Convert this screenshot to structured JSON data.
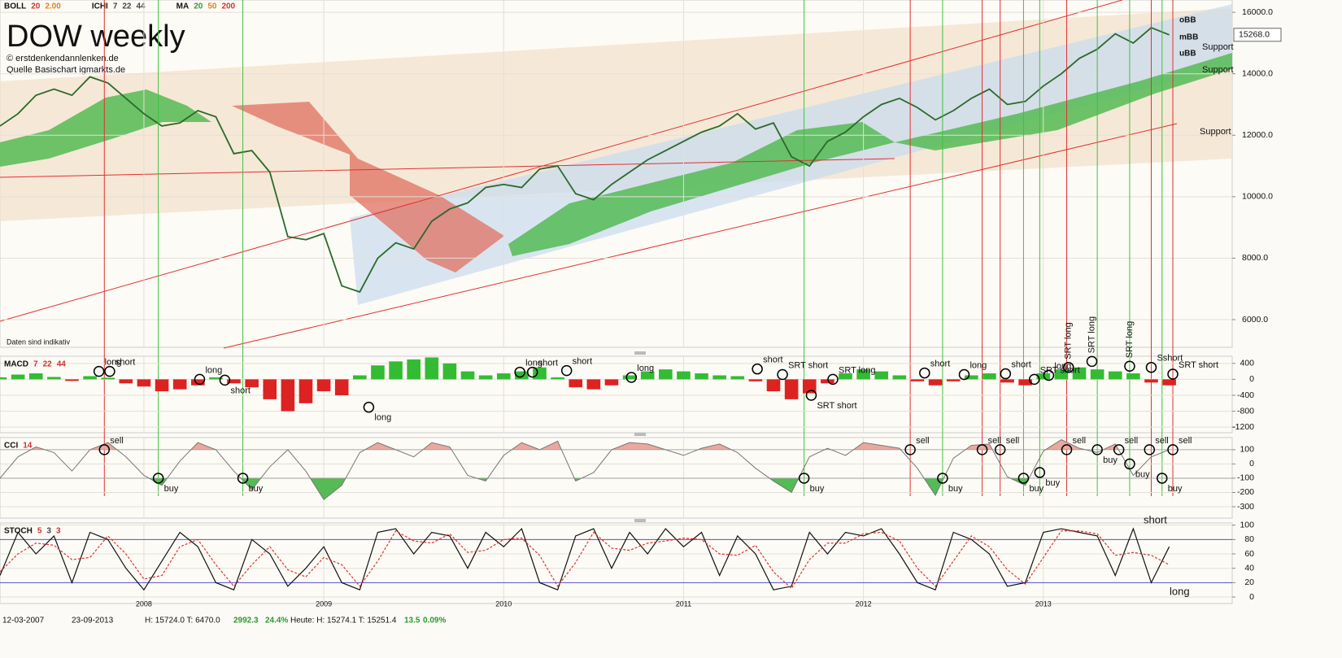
{
  "header": {
    "title": "DOW weekly",
    "copyright": "© erstdenkendannlenken.de",
    "source": "Quelle Basischart igmarkts.de",
    "note": "Daten sind indikativ",
    "indicators": [
      {
        "name": "BOLL",
        "params": [
          {
            "text": "20",
            "color": "#cc3333"
          },
          {
            "text": "2.00",
            "color": "#e08020"
          }
        ]
      },
      {
        "name": "ICHI",
        "params": [
          {
            "text": "7",
            "color": "#444444"
          },
          {
            "text": "22",
            "color": "#444444"
          },
          {
            "text": "44",
            "color": "#444444"
          }
        ]
      },
      {
        "name": "MA",
        "params": [
          {
            "text": "20",
            "color": "#339933"
          },
          {
            "text": "50",
            "color": "#e08020"
          },
          {
            "text": "200",
            "color": "#cc3333"
          }
        ]
      }
    ]
  },
  "chart_data": [
    {
      "type": "line",
      "color": "#2a6a2a",
      "xlim": [
        2007.2,
        2014.05
      ],
      "ylim": [
        5100,
        16400
      ],
      "yticks": [
        {
          "value": 16000,
          "label": "16000.0"
        },
        {
          "value": 14000,
          "label": "14000.0"
        },
        {
          "value": 12000,
          "label": "12000.0"
        },
        {
          "value": 10000,
          "label": "10000.0"
        },
        {
          "value": 8000,
          "label": "8000.0"
        },
        {
          "value": 6000,
          "label": "6000.0"
        }
      ],
      "x": [
        2007.2,
        2007.3,
        2007.4,
        2007.5,
        2007.6,
        2007.7,
        2007.8,
        2007.9,
        2008.0,
        2008.1,
        2008.2,
        2008.3,
        2008.4,
        2008.5,
        2008.6,
        2008.7,
        2008.8,
        2008.9,
        2009.0,
        2009.1,
        2009.2,
        2009.3,
        2009.4,
        2009.5,
        2009.6,
        2009.7,
        2009.8,
        2009.9,
        2010.0,
        2010.1,
        2010.2,
        2010.3,
        2010.4,
        2010.5,
        2010.6,
        2010.7,
        2010.8,
        2010.9,
        2011.0,
        2011.1,
        2011.2,
        2011.3,
        2011.4,
        2011.5,
        2011.6,
        2011.7,
        2011.8,
        2011.9,
        2012.0,
        2012.1,
        2012.2,
        2012.3,
        2012.4,
        2012.5,
        2012.6,
        2012.7,
        2012.8,
        2012.9,
        2013.0,
        2013.1,
        2013.2,
        2013.3,
        2013.4,
        2013.5,
        2013.6,
        2013.7
      ],
      "values": [
        12300,
        12700,
        13300,
        13500,
        13300,
        13900,
        13700,
        13200,
        12700,
        12300,
        12400,
        12800,
        12600,
        11400,
        11500,
        10800,
        8700,
        8600,
        8800,
        7100,
        6900,
        8000,
        8500,
        8300,
        9200,
        9600,
        9800,
        10300,
        10400,
        10300,
        10900,
        11000,
        10100,
        9900,
        10400,
        10800,
        11200,
        11500,
        11800,
        12100,
        12300,
        12700,
        12200,
        12400,
        11300,
        11000,
        11800,
        12100,
        12600,
        13000,
        13200,
        12900,
        12500,
        12800,
        13200,
        13500,
        13000,
        13100,
        13600,
        14000,
        14500,
        14800,
        15300,
        15000,
        15500,
        15268
      ],
      "last_label": "15268.0",
      "annotations": [
        "oBB",
        "mBB",
        "uBB",
        "Support",
        "Support",
        "Support"
      ],
      "signals": [
        {
          "x": 2007.78,
          "color": "#e03030"
        },
        {
          "x": 2008.08,
          "color": "#40c040"
        },
        {
          "x": 2008.55,
          "color": "#40c040"
        },
        {
          "x": 2011.67,
          "color": "#40c040"
        },
        {
          "x": 2012.26,
          "color": "#e03030"
        },
        {
          "x": 2012.44,
          "color": "#40c040"
        },
        {
          "x": 2012.66,
          "color": "#e03030"
        },
        {
          "x": 2012.76,
          "color": "#e03030"
        },
        {
          "x": 2012.89,
          "color": "#40c040"
        },
        {
          "x": 2012.98,
          "color": "#40c040"
        },
        {
          "x": 2013.13,
          "color": "#e03030"
        },
        {
          "x": 2013.3,
          "color": "#40c040"
        },
        {
          "x": 2013.48,
          "color": "#40c040"
        },
        {
          "x": 2013.6,
          "color": "#e03030"
        },
        {
          "x": 2013.66,
          "color": "#40c040"
        },
        {
          "x": 2013.72,
          "color": "#e03030"
        }
      ]
    },
    {
      "type": "bar",
      "indicator": {
        "name": "MACD",
        "params": [
          {
            "text": "7",
            "color": "#cc3333"
          },
          {
            "text": "22",
            "color": "#cc3333"
          },
          {
            "text": "44",
            "color": "#cc3333"
          }
        ]
      },
      "colors": {
        "positive": "#33bb33",
        "negative": "#dd2222"
      },
      "xlim": [
        2007.2,
        2014.05
      ],
      "ylim": [
        -1340,
        580
      ],
      "yticks": [
        400,
        0,
        -400,
        -800,
        -1200
      ],
      "x": [
        2007.2,
        2007.3,
        2007.4,
        2007.5,
        2007.6,
        2007.7,
        2007.8,
        2007.9,
        2008.0,
        2008.1,
        2008.2,
        2008.3,
        2008.4,
        2008.5,
        2008.6,
        2008.7,
        2008.8,
        2008.9,
        2009.0,
        2009.1,
        2009.2,
        2009.3,
        2009.4,
        2009.5,
        2009.6,
        2009.7,
        2009.8,
        2009.9,
        2010.0,
        2010.1,
        2010.2,
        2010.3,
        2010.4,
        2010.5,
        2010.6,
        2010.7,
        2010.8,
        2010.9,
        2011.0,
        2011.1,
        2011.2,
        2011.3,
        2011.4,
        2011.5,
        2011.6,
        2011.7,
        2011.8,
        2011.9,
        2012.0,
        2012.1,
        2012.2,
        2012.3,
        2012.4,
        2012.5,
        2012.6,
        2012.7,
        2012.8,
        2012.9,
        2013.0,
        2013.1,
        2013.2,
        2013.3,
        2013.4,
        2013.5,
        2013.6,
        2013.7
      ],
      "values": [
        50,
        120,
        150,
        60,
        -40,
        80,
        40,
        -100,
        -180,
        -300,
        -250,
        -150,
        50,
        -100,
        -200,
        -500,
        -800,
        -600,
        -300,
        -400,
        100,
        350,
        450,
        500,
        550,
        400,
        200,
        100,
        150,
        200,
        300,
        50,
        -200,
        -250,
        -150,
        100,
        200,
        250,
        200,
        150,
        100,
        80,
        -50,
        -300,
        -500,
        -350,
        -100,
        150,
        250,
        200,
        100,
        -50,
        -150,
        -50,
        100,
        150,
        -80,
        -150,
        150,
        250,
        300,
        250,
        200,
        150,
        -80,
        -150
      ],
      "signals": [
        {
          "label": "long",
          "x": 2007.75,
          "y": 200
        },
        {
          "label": "short",
          "x": 2007.81,
          "y": 200
        },
        {
          "label": "long",
          "x": 2008.31,
          "y": 0
        },
        {
          "label": "short",
          "x": 2008.45,
          "y": -20
        },
        {
          "label": "long",
          "x": 2009.25,
          "y": -700
        },
        {
          "label": "long",
          "x": 2010.09,
          "y": 180
        },
        {
          "label": "short",
          "x": 2010.16,
          "y": 180
        },
        {
          "label": "short",
          "x": 2010.35,
          "y": 220
        },
        {
          "label": "long",
          "x": 2010.71,
          "y": 50
        },
        {
          "label": "short",
          "x": 2011.41,
          "y": 260
        },
        {
          "label": "SRT short",
          "x": 2011.55,
          "y": 120
        },
        {
          "label": "SRT short",
          "x": 2011.71,
          "y": -400
        },
        {
          "label": "SRT long",
          "x": 2011.83,
          "y": 0
        },
        {
          "label": "short",
          "x": 2012.34,
          "y": 160
        },
        {
          "label": "long",
          "x": 2012.56,
          "y": 120
        },
        {
          "label": "short",
          "x": 2012.79,
          "y": 140
        },
        {
          "label": "SRT short",
          "x": 2012.95,
          "y": 0
        },
        {
          "label": "long",
          "x": 2013.03,
          "y": 100
        },
        {
          "label": "SRT long",
          "x": 2013.14,
          "y": 300,
          "vertical": true
        },
        {
          "label": "SRT long",
          "x": 2013.27,
          "y": 450,
          "vertical": true
        },
        {
          "label": "SRT long",
          "x": 2013.48,
          "y": 330,
          "vertical": true
        },
        {
          "label": "Sshort",
          "x": 2013.6,
          "y": 300
        },
        {
          "label": "SRT short",
          "x": 2013.72,
          "y": 130
        }
      ]
    },
    {
      "type": "line",
      "indicator": {
        "name": "CCI",
        "params": [
          {
            "text": "14",
            "color": "#cc3333"
          }
        ]
      },
      "color": "#777777",
      "bands": [
        {
          "level": 100,
          "side": "above",
          "color": "#eaa8a0"
        },
        {
          "level": -100,
          "side": "below",
          "color": "#55bb55"
        }
      ],
      "xlim": [
        2007.2,
        2014.05
      ],
      "ylim": [
        -380,
        185
      ],
      "yticks": [
        100,
        0,
        -100,
        -200,
        -300
      ],
      "x": [
        2007.2,
        2007.3,
        2007.4,
        2007.5,
        2007.6,
        2007.7,
        2007.8,
        2007.9,
        2008.0,
        2008.1,
        2008.2,
        2008.3,
        2008.4,
        2008.5,
        2008.6,
        2008.7,
        2008.8,
        2008.9,
        2009.0,
        2009.1,
        2009.2,
        2009.3,
        2009.4,
        2009.5,
        2009.6,
        2009.7,
        2009.8,
        2009.9,
        2010.0,
        2010.1,
        2010.2,
        2010.3,
        2010.4,
        2010.5,
        2010.6,
        2010.7,
        2010.8,
        2010.9,
        2011.0,
        2011.1,
        2011.2,
        2011.3,
        2011.4,
        2011.5,
        2011.6,
        2011.7,
        2011.8,
        2011.9,
        2012.0,
        2012.1,
        2012.2,
        2012.3,
        2012.4,
        2012.5,
        2012.6,
        2012.7,
        2012.8,
        2012.9,
        2013.0,
        2013.1,
        2013.2,
        2013.3,
        2013.4,
        2013.5,
        2013.6,
        2013.7
      ],
      "values": [
        -100,
        50,
        120,
        80,
        -50,
        100,
        150,
        50,
        -80,
        -150,
        20,
        150,
        100,
        -50,
        -180,
        -20,
        100,
        -50,
        -250,
        -150,
        80,
        150,
        100,
        50,
        150,
        120,
        -80,
        -120,
        60,
        150,
        100,
        160,
        -120,
        -60,
        100,
        150,
        140,
        100,
        60,
        110,
        140,
        80,
        -30,
        -120,
        -200,
        50,
        110,
        60,
        150,
        130,
        110,
        -30,
        -220,
        40,
        130,
        140,
        -90,
        -150,
        90,
        170,
        110,
        80,
        140,
        -80,
        50,
        100
      ],
      "signals": [
        {
          "label": "sell",
          "x": 2007.78,
          "y": 100
        },
        {
          "label": "buy",
          "x": 2008.08,
          "y": -100
        },
        {
          "label": "buy",
          "x": 2008.55,
          "y": -100
        },
        {
          "label": "buy",
          "x": 2011.67,
          "y": -100
        },
        {
          "label": "sell",
          "x": 2012.26,
          "y": 100
        },
        {
          "label": "buy",
          "x": 2012.44,
          "y": -100
        },
        {
          "label": "sell",
          "x": 2012.66,
          "y": 100
        },
        {
          "label": "sell",
          "x": 2012.76,
          "y": 100
        },
        {
          "label": "buy",
          "x": 2012.89,
          "y": -100
        },
        {
          "label": "buy",
          "x": 2012.98,
          "y": -60
        },
        {
          "label": "sell",
          "x": 2013.13,
          "y": 100
        },
        {
          "label": "buy",
          "x": 2013.3,
          "y": 100
        },
        {
          "label": "sell",
          "x": 2013.42,
          "y": 100
        },
        {
          "label": "buy",
          "x": 2013.48,
          "y": 0
        },
        {
          "label": "sell",
          "x": 2013.59,
          "y": 100
        },
        {
          "label": "buy",
          "x": 2013.66,
          "y": -100
        },
        {
          "label": "sell",
          "x": 2013.72,
          "y": 100
        }
      ]
    },
    {
      "type": "line",
      "indicator": {
        "name": "STOCH",
        "params": [
          {
            "text": "5",
            "color": "#cc3333"
          },
          {
            "text": "3",
            "color": "#444444"
          },
          {
            "text": "3",
            "color": "#cc3333"
          }
        ]
      },
      "xlim": [
        2007.2,
        2014.05
      ],
      "ylim": [
        -9,
        103
      ],
      "yticks": [
        100,
        80,
        60,
        40,
        20,
        0
      ],
      "xticks": [
        2008,
        2009,
        2010,
        2011,
        2012,
        2013
      ],
      "levels": [
        {
          "value": 80,
          "color": "#5555dd"
        },
        {
          "value": 20,
          "color": "#5555dd"
        }
      ],
      "x": [
        2007.2,
        2007.3,
        2007.4,
        2007.5,
        2007.6,
        2007.7,
        2007.8,
        2007.9,
        2008.0,
        2008.1,
        2008.2,
        2008.3,
        2008.4,
        2008.5,
        2008.6,
        2008.7,
        2008.8,
        2008.9,
        2009.0,
        2009.1,
        2009.2,
        2009.3,
        2009.4,
        2009.5,
        2009.6,
        2009.7,
        2009.8,
        2009.9,
        2010.0,
        2010.1,
        2010.2,
        2010.3,
        2010.4,
        2010.5,
        2010.6,
        2010.7,
        2010.8,
        2010.9,
        2011.0,
        2011.1,
        2011.2,
        2011.3,
        2011.4,
        2011.5,
        2011.6,
        2011.7,
        2011.8,
        2011.9,
        2012.0,
        2012.1,
        2012.2,
        2012.3,
        2012.4,
        2012.5,
        2012.6,
        2012.7,
        2012.8,
        2012.9,
        2013.0,
        2013.1,
        2013.2,
        2013.3,
        2013.4,
        2013.5,
        2013.6,
        2013.7
      ],
      "series": [
        {
          "color": "#111111",
          "dash": false,
          "values": [
            30,
            90,
            60,
            85,
            20,
            90,
            80,
            40,
            10,
            50,
            90,
            70,
            20,
            10,
            80,
            60,
            15,
            40,
            70,
            20,
            10,
            90,
            95,
            60,
            90,
            85,
            40,
            90,
            70,
            95,
            20,
            10,
            85,
            95,
            40,
            90,
            60,
            95,
            70,
            90,
            30,
            85,
            60,
            10,
            15,
            90,
            60,
            90,
            85,
            95,
            60,
            20,
            10,
            90,
            80,
            60,
            15,
            20,
            90,
            95,
            90,
            85,
            30,
            95,
            20,
            70
          ]
        },
        {
          "color": "#dd3333",
          "dash": true,
          "values": [
            35,
            60,
            75,
            72,
            52,
            55,
            85,
            60,
            25,
            30,
            70,
            80,
            45,
            15,
            45,
            70,
            38,
            28,
            55,
            45,
            15,
            50,
            92,
            78,
            75,
            88,
            62,
            65,
            80,
            82,
            58,
            15,
            48,
            90,
            68,
            65,
            75,
            78,
            82,
            80,
            60,
            58,
            72,
            35,
            12,
            52,
            75,
            75,
            88,
            90,
            78,
            40,
            15,
            50,
            85,
            70,
            38,
            18,
            55,
            92,
            92,
            88,
            58,
            62,
            58,
            45
          ]
        }
      ],
      "annotations": [
        "short",
        "long"
      ]
    }
  ],
  "footer": {
    "from": "12-03-2007",
    "to": "23-09-2013",
    "range": "H: 15724.0 T: 6470.0",
    "change": "2992.3",
    "change_pct": "24.4%",
    "today": "Heute: H: 15274.1 T: 15251.4",
    "today_change": "13.5",
    "today_pct": "0.09%"
  }
}
